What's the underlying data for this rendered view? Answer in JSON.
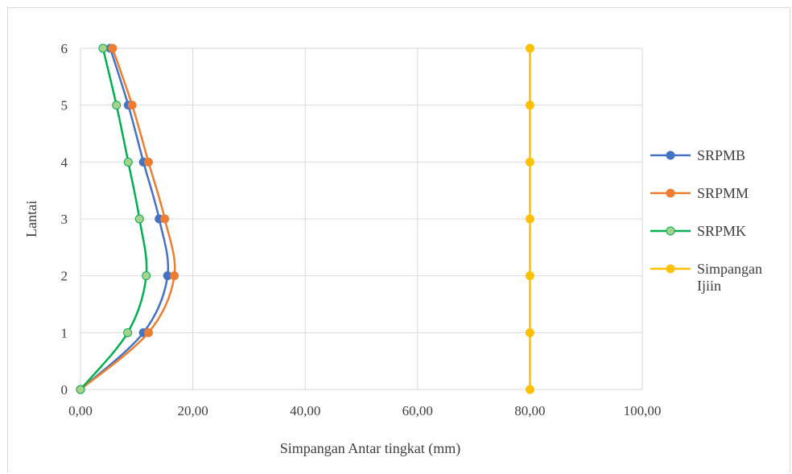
{
  "chart_data": {
    "type": "line",
    "title": "",
    "xlabel": "Simpangan  Antar tingkat (mm)",
    "ylabel": "Lantai",
    "xlim": [
      0,
      100
    ],
    "ylim": [
      0,
      6
    ],
    "x_ticks": [
      "0,00",
      "20,00",
      "40,00",
      "60,00",
      "80,00",
      "100,00"
    ],
    "y_ticks": [
      "0",
      "1",
      "2",
      "3",
      "4",
      "5",
      "6"
    ],
    "grid": true,
    "smooth": true,
    "legend_position": "right",
    "series": [
      {
        "name": "SRPMB",
        "color": "#4472c4",
        "marker_fill": "#4472c4",
        "points": [
          [
            0.0,
            0
          ],
          [
            11.2,
            1
          ],
          [
            15.5,
            2
          ],
          [
            14.0,
            3
          ],
          [
            11.2,
            4
          ],
          [
            8.5,
            5
          ],
          [
            5.3,
            6
          ]
        ]
      },
      {
        "name": "SRPMM",
        "color": "#ed7d31",
        "marker_fill": "#ed7d31",
        "points": [
          [
            0.0,
            0
          ],
          [
            12.1,
            1
          ],
          [
            16.7,
            2
          ],
          [
            15.0,
            3
          ],
          [
            12.1,
            4
          ],
          [
            9.2,
            5
          ],
          [
            5.7,
            6
          ]
        ]
      },
      {
        "name": "SRPMK",
        "color": "#00b050",
        "marker_fill": "#a9d18e",
        "points": [
          [
            0.0,
            0
          ],
          [
            8.4,
            1
          ],
          [
            11.7,
            2
          ],
          [
            10.5,
            3
          ],
          [
            8.5,
            4
          ],
          [
            6.4,
            5
          ],
          [
            4.0,
            6
          ]
        ]
      },
      {
        "name": "Simpangan Ijiin",
        "color": "#ffc000",
        "marker_fill": "#ffc000",
        "points": [
          [
            80.0,
            0
          ],
          [
            80.0,
            1
          ],
          [
            80.0,
            2
          ],
          [
            80.0,
            3
          ],
          [
            80.0,
            4
          ],
          [
            80.0,
            5
          ],
          [
            80.0,
            6
          ]
        ]
      }
    ]
  }
}
